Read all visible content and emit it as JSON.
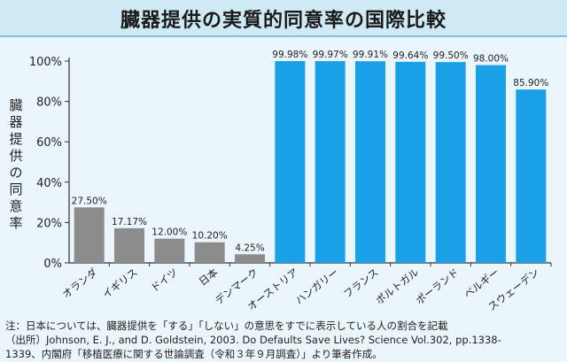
{
  "title": "臓器提供の実質的同意率の国際比較",
  "notes": {
    "line1": "注：日本については、臓器提供を「する」「しない」の意思をすでに表示している人の割合を記載",
    "line2": "（出所）Johnson, E. J., and D. Goldstein, 2003. Do Defaults Save Lives? Science Vol.302, pp.1338-",
    "line3": "1339、内閣府「移植医療に関する世論調査（令和３年９月調査）」より筆者作成。"
  },
  "colors": {
    "gray_bar": "#8c8c8c",
    "blue_bar": "#1aa0e6",
    "axis": "#333333"
  },
  "chart_data": {
    "type": "bar",
    "title": "臓器提供の実質的同意率の国際比較",
    "ylabel": "臓器提供の同意率",
    "xlabel": "",
    "ylim": [
      0,
      100
    ],
    "yticks": [
      0,
      20,
      40,
      60,
      80,
      100
    ],
    "ytick_labels": [
      "0%",
      "20%",
      "40%",
      "60%",
      "80%",
      "100%"
    ],
    "grid": false,
    "categories": [
      "オランダ",
      "イギリス",
      "ドイツ",
      "日本",
      "デンマーク",
      "オーストリア",
      "ハンガリー",
      "フランス",
      "ポルトガル",
      "ポーランド",
      "ベルギー",
      "スウェーデン"
    ],
    "values": [
      27.5,
      17.17,
      12.0,
      10.2,
      4.25,
      99.98,
      99.97,
      99.91,
      99.64,
      99.5,
      98.0,
      85.9
    ],
    "value_labels": [
      "27.50%",
      "17.17%",
      "12.00%",
      "10.20%",
      "4.25%",
      "99.98%",
      "99.97%",
      "99.91%",
      "99.64%",
      "99.50%",
      "98.00%",
      "85.90%"
    ],
    "groups": [
      "opt-in",
      "opt-in",
      "opt-in",
      "opt-in",
      "opt-in",
      "opt-out",
      "opt-out",
      "opt-out",
      "opt-out",
      "opt-out",
      "opt-out",
      "opt-out"
    ]
  }
}
